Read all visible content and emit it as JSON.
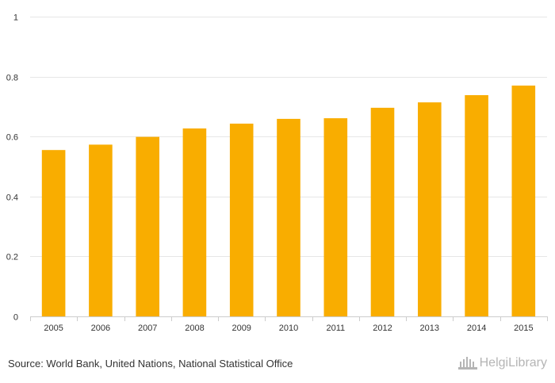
{
  "chart_data": {
    "type": "bar",
    "title": "",
    "xlabel": "",
    "ylabel": "",
    "categories": [
      "2005",
      "2006",
      "2007",
      "2008",
      "2009",
      "2010",
      "2011",
      "2012",
      "2013",
      "2014",
      "2015"
    ],
    "values": [
      0.555,
      0.573,
      0.599,
      0.627,
      0.643,
      0.659,
      0.661,
      0.696,
      0.714,
      0.738,
      0.77
    ],
    "ylim": [
      0,
      1
    ],
    "yticks": [
      "0",
      "0.2",
      "0.4",
      "0.6",
      "0.8",
      "1"
    ],
    "grid": true,
    "legend": "none",
    "colors": {
      "bar": "#f9ad00"
    }
  },
  "footer": {
    "source": "Source: World Bank, United Nations, National Statistical Office",
    "brand": "HelgiLibrary"
  }
}
